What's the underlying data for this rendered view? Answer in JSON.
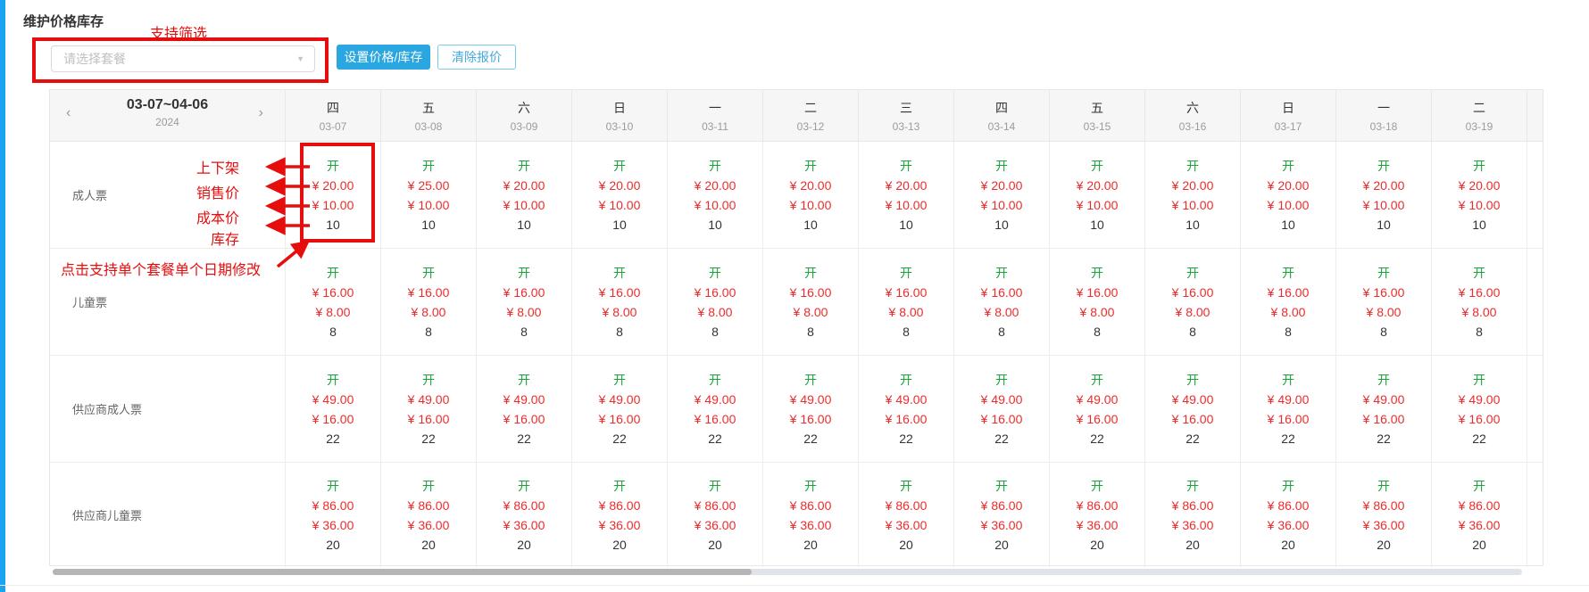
{
  "page": {
    "title": "维护价格库存"
  },
  "toolbar": {
    "package_select": {
      "placeholder": "请选择套餐",
      "caret_icon": "▼"
    },
    "set_price_button": "设置价格/库存",
    "clear_quote_button": "清除报价"
  },
  "annotations": {
    "filter_note": "支持筛选",
    "field_labels": [
      "上下架",
      "销售价",
      "成本价",
      "库存"
    ],
    "click_note": "点击支持单个套餐单个日期修改"
  },
  "calendar": {
    "prev_icon": "‹",
    "next_icon": "›",
    "range": "03-07~04-06",
    "year": "2024",
    "days": [
      {
        "weekday": "四",
        "date": "03-07"
      },
      {
        "weekday": "五",
        "date": "03-08"
      },
      {
        "weekday": "六",
        "date": "03-09"
      },
      {
        "weekday": "日",
        "date": "03-10"
      },
      {
        "weekday": "一",
        "date": "03-11"
      },
      {
        "weekday": "二",
        "date": "03-12"
      },
      {
        "weekday": "三",
        "date": "03-13"
      },
      {
        "weekday": "四",
        "date": "03-14"
      },
      {
        "weekday": "五",
        "date": "03-15"
      },
      {
        "weekday": "六",
        "date": "03-16"
      },
      {
        "weekday": "日",
        "date": "03-17"
      },
      {
        "weekday": "一",
        "date": "03-18"
      },
      {
        "weekday": "二",
        "date": "03-19"
      }
    ],
    "rows": [
      {
        "label": "成人票",
        "cells": [
          {
            "status": "开",
            "price": "¥ 20.00",
            "cost": "¥ 10.00",
            "stock": "10"
          },
          {
            "status": "开",
            "price": "¥ 25.00",
            "cost": "¥ 10.00",
            "stock": "10"
          },
          {
            "status": "开",
            "price": "¥ 20.00",
            "cost": "¥ 10.00",
            "stock": "10"
          },
          {
            "status": "开",
            "price": "¥ 20.00",
            "cost": "¥ 10.00",
            "stock": "10"
          },
          {
            "status": "开",
            "price": "¥ 20.00",
            "cost": "¥ 10.00",
            "stock": "10"
          },
          {
            "status": "开",
            "price": "¥ 20.00",
            "cost": "¥ 10.00",
            "stock": "10"
          },
          {
            "status": "开",
            "price": "¥ 20.00",
            "cost": "¥ 10.00",
            "stock": "10"
          },
          {
            "status": "开",
            "price": "¥ 20.00",
            "cost": "¥ 10.00",
            "stock": "10"
          },
          {
            "status": "开",
            "price": "¥ 20.00",
            "cost": "¥ 10.00",
            "stock": "10"
          },
          {
            "status": "开",
            "price": "¥ 20.00",
            "cost": "¥ 10.00",
            "stock": "10"
          },
          {
            "status": "开",
            "price": "¥ 20.00",
            "cost": "¥ 10.00",
            "stock": "10"
          },
          {
            "status": "开",
            "price": "¥ 20.00",
            "cost": "¥ 10.00",
            "stock": "10"
          },
          {
            "status": "开",
            "price": "¥ 20.00",
            "cost": "¥ 10.00",
            "stock": "10"
          }
        ]
      },
      {
        "label": "儿童票",
        "cells": [
          {
            "status": "开",
            "price": "¥ 16.00",
            "cost": "¥ 8.00",
            "stock": "8"
          },
          {
            "status": "开",
            "price": "¥ 16.00",
            "cost": "¥ 8.00",
            "stock": "8"
          },
          {
            "status": "开",
            "price": "¥ 16.00",
            "cost": "¥ 8.00",
            "stock": "8"
          },
          {
            "status": "开",
            "price": "¥ 16.00",
            "cost": "¥ 8.00",
            "stock": "8"
          },
          {
            "status": "开",
            "price": "¥ 16.00",
            "cost": "¥ 8.00",
            "stock": "8"
          },
          {
            "status": "开",
            "price": "¥ 16.00",
            "cost": "¥ 8.00",
            "stock": "8"
          },
          {
            "status": "开",
            "price": "¥ 16.00",
            "cost": "¥ 8.00",
            "stock": "8"
          },
          {
            "status": "开",
            "price": "¥ 16.00",
            "cost": "¥ 8.00",
            "stock": "8"
          },
          {
            "status": "开",
            "price": "¥ 16.00",
            "cost": "¥ 8.00",
            "stock": "8"
          },
          {
            "status": "开",
            "price": "¥ 16.00",
            "cost": "¥ 8.00",
            "stock": "8"
          },
          {
            "status": "开",
            "price": "¥ 16.00",
            "cost": "¥ 8.00",
            "stock": "8"
          },
          {
            "status": "开",
            "price": "¥ 16.00",
            "cost": "¥ 8.00",
            "stock": "8"
          },
          {
            "status": "开",
            "price": "¥ 16.00",
            "cost": "¥ 8.00",
            "stock": "8"
          }
        ]
      },
      {
        "label": "供应商成人票",
        "cells": [
          {
            "status": "开",
            "price": "¥ 49.00",
            "cost": "¥ 16.00",
            "stock": "22"
          },
          {
            "status": "开",
            "price": "¥ 49.00",
            "cost": "¥ 16.00",
            "stock": "22"
          },
          {
            "status": "开",
            "price": "¥ 49.00",
            "cost": "¥ 16.00",
            "stock": "22"
          },
          {
            "status": "开",
            "price": "¥ 49.00",
            "cost": "¥ 16.00",
            "stock": "22"
          },
          {
            "status": "开",
            "price": "¥ 49.00",
            "cost": "¥ 16.00",
            "stock": "22"
          },
          {
            "status": "开",
            "price": "¥ 49.00",
            "cost": "¥ 16.00",
            "stock": "22"
          },
          {
            "status": "开",
            "price": "¥ 49.00",
            "cost": "¥ 16.00",
            "stock": "22"
          },
          {
            "status": "开",
            "price": "¥ 49.00",
            "cost": "¥ 16.00",
            "stock": "22"
          },
          {
            "status": "开",
            "price": "¥ 49.00",
            "cost": "¥ 16.00",
            "stock": "22"
          },
          {
            "status": "开",
            "price": "¥ 49.00",
            "cost": "¥ 16.00",
            "stock": "22"
          },
          {
            "status": "开",
            "price": "¥ 49.00",
            "cost": "¥ 16.00",
            "stock": "22"
          },
          {
            "status": "开",
            "price": "¥ 49.00",
            "cost": "¥ 16.00",
            "stock": "22"
          },
          {
            "status": "开",
            "price": "¥ 49.00",
            "cost": "¥ 16.00",
            "stock": "22"
          }
        ]
      },
      {
        "label": "供应商儿童票",
        "cells": [
          {
            "status": "开",
            "price": "¥ 86.00",
            "cost": "¥ 36.00",
            "stock": "20"
          },
          {
            "status": "开",
            "price": "¥ 86.00",
            "cost": "¥ 36.00",
            "stock": "20"
          },
          {
            "status": "开",
            "price": "¥ 86.00",
            "cost": "¥ 36.00",
            "stock": "20"
          },
          {
            "status": "开",
            "price": "¥ 86.00",
            "cost": "¥ 36.00",
            "stock": "20"
          },
          {
            "status": "开",
            "price": "¥ 86.00",
            "cost": "¥ 36.00",
            "stock": "20"
          },
          {
            "status": "开",
            "price": "¥ 86.00",
            "cost": "¥ 36.00",
            "stock": "20"
          },
          {
            "status": "开",
            "price": "¥ 86.00",
            "cost": "¥ 36.00",
            "stock": "20"
          },
          {
            "status": "开",
            "price": "¥ 86.00",
            "cost": "¥ 36.00",
            "stock": "20"
          },
          {
            "status": "开",
            "price": "¥ 86.00",
            "cost": "¥ 36.00",
            "stock": "20"
          },
          {
            "status": "开",
            "price": "¥ 86.00",
            "cost": "¥ 36.00",
            "stock": "20"
          },
          {
            "status": "开",
            "price": "¥ 86.00",
            "cost": "¥ 36.00",
            "stock": "20"
          },
          {
            "status": "开",
            "price": "¥ 86.00",
            "cost": "¥ 36.00",
            "stock": "20"
          },
          {
            "status": "开",
            "price": "¥ 86.00",
            "cost": "¥ 36.00",
            "stock": "20"
          }
        ]
      }
    ]
  },
  "colors": {
    "accent_blue": "#2aa7e0",
    "open_green": "#1ba23c",
    "price_red": "#ee2b2b",
    "annotation_red": "#e60d0d",
    "left_bar_blue": "#19a3f1"
  }
}
